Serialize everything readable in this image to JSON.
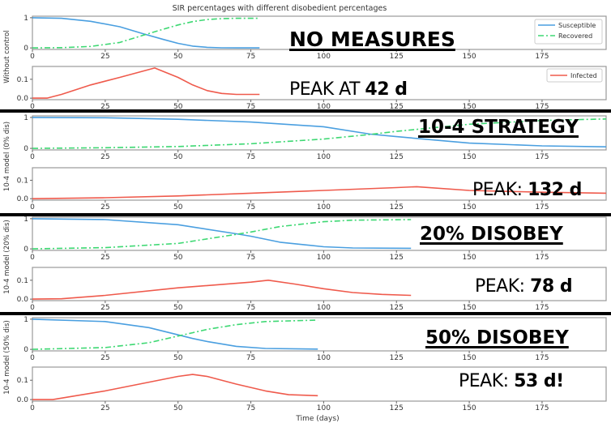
{
  "chart_data": {
    "type": "line",
    "title": "SIR percentages with different disobedient percentages",
    "xlabel": "Time (days)",
    "xlim": [
      0,
      197
    ],
    "x_ticks": [
      0,
      25,
      50,
      75,
      100,
      125,
      150,
      175
    ],
    "grid": false,
    "colors": {
      "Susceptible": "#4a9fe0",
      "Recovered": "#3ed873",
      "Infected": "#ef5a4c"
    },
    "legend": {
      "placement": "top-right",
      "top_entries": [
        "Susceptible",
        "Recovered"
      ],
      "bottom_entries": [
        "Infected"
      ]
    },
    "scenarios": [
      {
        "ylabel": "Without control",
        "heading": "NO MEASURES",
        "peak_prefix": "PEAK AT ",
        "peak_value": "42 d",
        "sr_panel": {
          "ylim": [
            -0.05,
            1.05
          ],
          "y_ticks": [
            "0",
            "1"
          ],
          "x": [
            0,
            10,
            20,
            30,
            38,
            45,
            50,
            55,
            60,
            65,
            70,
            78
          ],
          "Susceptible": [
            1,
            0.98,
            0.88,
            0.7,
            0.47,
            0.28,
            0.15,
            0.06,
            0.02,
            0.005,
            0,
            0
          ],
          "Recovered": [
            0,
            0.01,
            0.05,
            0.18,
            0.42,
            0.62,
            0.76,
            0.87,
            0.94,
            0.97,
            0.98,
            0.98
          ]
        },
        "i_panel": {
          "ylim": [
            -0.008,
            0.168
          ],
          "y_ticks": [
            "0.0",
            "0.1"
          ],
          "x": [
            0,
            5,
            10,
            20,
            30,
            42,
            50,
            55,
            60,
            65,
            70,
            78
          ],
          "Infected": [
            0,
            0,
            0.02,
            0.07,
            0.11,
            0.16,
            0.11,
            0.07,
            0.04,
            0.025,
            0.02,
            0.02
          ]
        }
      },
      {
        "ylabel": "10-4 model (0% dis)",
        "heading": "10-4 STRATEGY",
        "peak_prefix": "PEAK: ",
        "peak_value": "132 d",
        "sr_panel": {
          "ylim": [
            -0.05,
            1.05
          ],
          "y_ticks": [
            "0",
            "1"
          ],
          "x": [
            0,
            25,
            50,
            75,
            100,
            116,
            125,
            150,
            175,
            197
          ],
          "Susceptible": [
            1,
            0.99,
            0.94,
            0.85,
            0.7,
            0.46,
            0.38,
            0.17,
            0.08,
            0.05
          ],
          "Recovered": [
            0,
            0.02,
            0.06,
            0.15,
            0.3,
            0.45,
            0.55,
            0.78,
            0.9,
            0.95
          ]
        },
        "i_panel": {
          "ylim": [
            -0.008,
            0.168
          ],
          "y_ticks": [
            "0.0",
            "0.1"
          ],
          "x": [
            0,
            25,
            50,
            75,
            100,
            125,
            132,
            150,
            175,
            197
          ],
          "Infected": [
            0,
            0.005,
            0.015,
            0.03,
            0.045,
            0.06,
            0.065,
            0.045,
            0.035,
            0.03
          ]
        }
      },
      {
        "ylabel": "10-4 model (20% dis)",
        "heading": "20% DISOBEY",
        "peak_prefix": "PEAK: ",
        "peak_value": "78 d",
        "sr_panel": {
          "ylim": [
            -0.05,
            1.05
          ],
          "y_ticks": [
            "0",
            "1"
          ],
          "x": [
            0,
            25,
            50,
            70,
            75,
            85,
            100,
            110,
            130
          ],
          "Susceptible": [
            1,
            0.97,
            0.8,
            0.5,
            0.42,
            0.22,
            0.07,
            0.03,
            0.02
          ],
          "Recovered": [
            0,
            0.04,
            0.18,
            0.48,
            0.56,
            0.74,
            0.9,
            0.95,
            0.97
          ]
        },
        "i_panel": {
          "ylim": [
            -0.008,
            0.168
          ],
          "y_ticks": [
            "0.0",
            "0.1"
          ],
          "x": [
            0,
            10,
            25,
            50,
            75,
            81,
            90,
            100,
            110,
            120,
            130
          ],
          "Infected": [
            0,
            0.002,
            0.02,
            0.06,
            0.09,
            0.1,
            0.08,
            0.055,
            0.035,
            0.025,
            0.02
          ]
        }
      },
      {
        "ylabel": "10-4 model (50% dis)",
        "heading": "50% DISOBEY",
        "peak_prefix": "PEAK: ",
        "peak_value": "53 d!",
        "sr_panel": {
          "ylim": [
            -0.05,
            1.05
          ],
          "y_ticks": [
            "0",
            "1"
          ],
          "x": [
            0,
            25,
            40,
            50,
            55,
            60,
            70,
            80,
            98
          ],
          "Susceptible": [
            1,
            0.92,
            0.72,
            0.48,
            0.36,
            0.26,
            0.1,
            0.03,
            0.01
          ],
          "Recovered": [
            0,
            0.06,
            0.22,
            0.44,
            0.55,
            0.66,
            0.82,
            0.92,
            0.97
          ]
        },
        "i_panel": {
          "ylim": [
            -0.008,
            0.168
          ],
          "y_ticks": [
            "0.0",
            "0.1"
          ],
          "x": [
            0,
            7,
            25,
            50,
            55,
            60,
            70,
            80,
            88,
            98
          ],
          "Infected": [
            0,
            0,
            0.045,
            0.12,
            0.13,
            0.12,
            0.08,
            0.045,
            0.025,
            0.02
          ]
        }
      }
    ]
  }
}
